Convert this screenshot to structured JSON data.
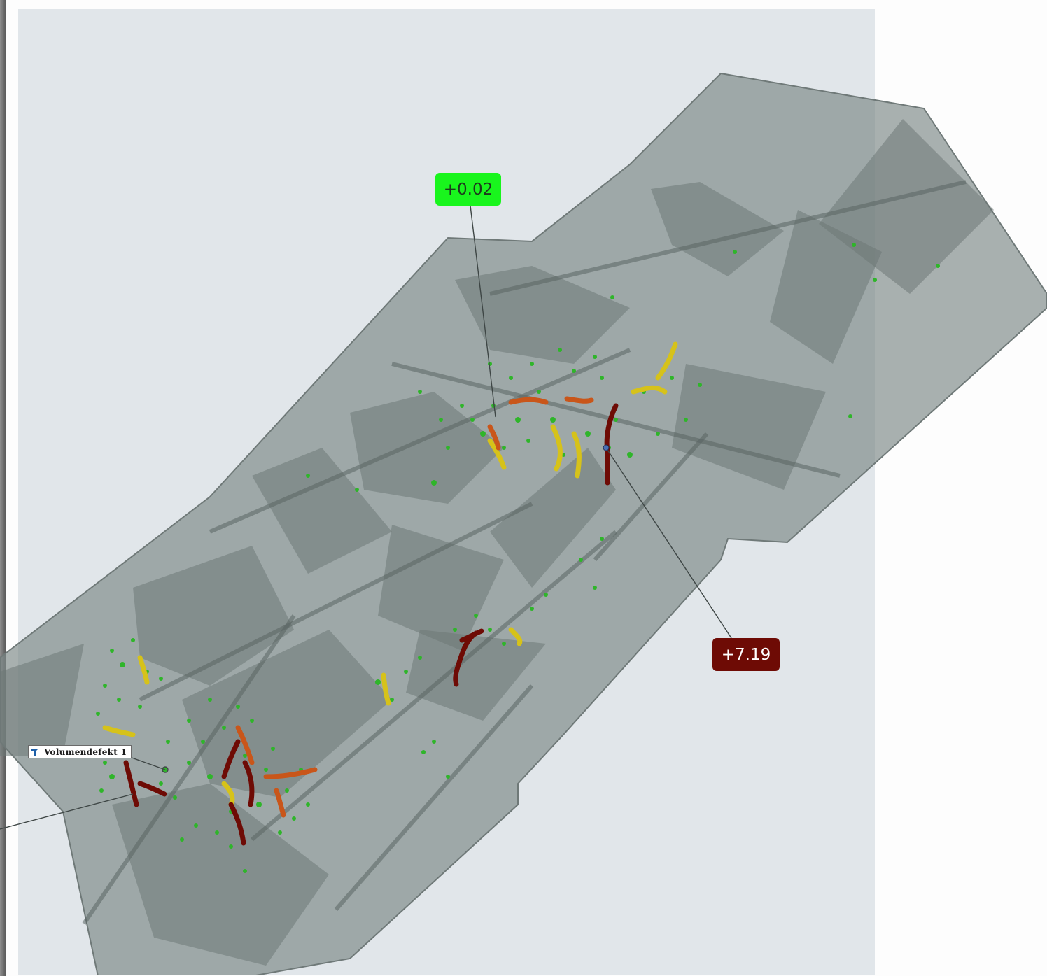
{
  "viewport": {
    "background_color": "#e1e6ea",
    "part_color": "#7f8a89"
  },
  "annotations": {
    "top_deviation": {
      "label": "+0.02",
      "color": "#19f51d"
    },
    "right_deviation": {
      "label": "+7.19",
      "color": "#6e0b05"
    }
  },
  "defect_label": {
    "text": "Volumendefekt 1",
    "icon": "defect-marker-icon"
  },
  "defect_colors": [
    "#2fb52a",
    "#d6c21a",
    "#c9561a",
    "#6e0b05"
  ]
}
